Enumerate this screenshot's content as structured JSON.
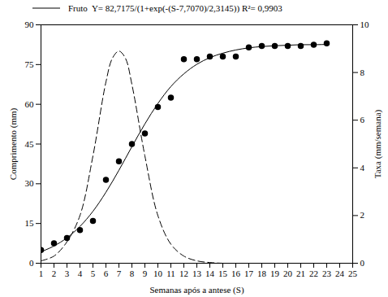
{
  "chart_data": {
    "type": "line",
    "x_label": "Semanas após a antese (S)",
    "y_label": "Comprimento (mm)",
    "y2_label": "Taxa (mm/semana)",
    "xlim": [
      1,
      25
    ],
    "xticks": [
      1,
      2,
      3,
      4,
      5,
      6,
      7,
      8,
      9,
      10,
      11,
      12,
      13,
      14,
      15,
      16,
      17,
      18,
      19,
      20,
      21,
      22,
      23,
      24,
      25
    ],
    "ylim": [
      0,
      90
    ],
    "yticks": [
      0,
      15,
      30,
      45,
      60,
      75,
      90
    ],
    "y2lim": [
      0,
      10
    ],
    "y2ticks": [
      0,
      2,
      4,
      6,
      8,
      10
    ],
    "legend": "top",
    "series": [
      {
        "type": "scatter",
        "marker": "circle",
        "color": "#000000",
        "x": [
          1,
          2,
          3,
          4,
          5,
          6,
          7,
          8,
          9,
          10,
          11,
          12,
          13,
          14,
          15,
          16,
          17,
          18,
          19,
          20,
          21,
          22,
          23
        ],
        "values": [
          5,
          7.5,
          9.5,
          12.5,
          16,
          31.5,
          38.5,
          45,
          49,
          59,
          62.5,
          77,
          77,
          78,
          78,
          78,
          81.5,
          82,
          82,
          82,
          82,
          82.5,
          83
        ]
      },
      {
        "name": "Fruto  Y= 82,7175/(1+exp(-(S-7,7070)/2,3145)) R²= 0,9903",
        "type": "line",
        "line_style": "solid",
        "color": "#000000",
        "x": [
          1,
          2,
          3,
          4,
          5,
          6,
          7,
          8,
          9,
          10,
          11,
          12,
          13,
          14,
          15,
          16,
          17,
          18,
          19,
          20,
          21,
          22,
          23
        ],
        "values": [
          4.3,
          6.5,
          9.6,
          13.9,
          19.6,
          26.8,
          35.1,
          44,
          52.6,
          60.3,
          66.7,
          71.5,
          75.1,
          77.6,
          79.3,
          80.5,
          81.3,
          81.8,
          82.1,
          82.3,
          82.5,
          82.5,
          82.6
        ]
      },
      {
        "type": "line",
        "line_style": "dashed",
        "color": "#000000",
        "axis": "y2",
        "x": [
          1,
          2,
          3,
          4,
          5,
          6,
          6.5,
          7,
          7.5,
          8,
          9,
          10,
          11,
          12,
          13,
          14,
          15,
          16,
          17,
          18,
          19,
          20,
          21,
          22,
          23
        ],
        "values": [
          0.1,
          0.3,
          0.9,
          2,
          4.5,
          7.6,
          8.6,
          8.9,
          8.6,
          7.5,
          4.5,
          2,
          0.8,
          0.3,
          0.1,
          0.03,
          0,
          0,
          0,
          0,
          0,
          0,
          0,
          0,
          0
        ]
      }
    ]
  }
}
